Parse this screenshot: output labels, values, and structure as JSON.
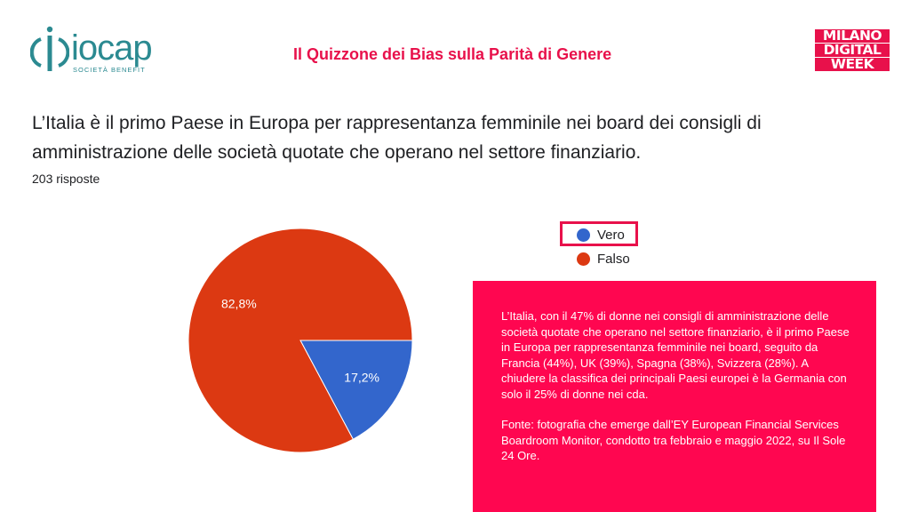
{
  "header": {
    "logo_name": "iocap",
    "logo_tagline": "SOCIETÀ BENEFIT",
    "title": "Il Quizzone dei Bias sulla Parità di Genere",
    "event_logo": [
      "MILANO",
      "DIGITAL",
      "WEEK"
    ]
  },
  "question": {
    "text": "L’Italia è il primo Paese in Europa per rappresentanza femminile nei board dei consigli di amministrazione delle società quotate che operano nel settore finanziario.",
    "responses": "203 risposte"
  },
  "chart_data": {
    "type": "pie",
    "categories": [
      "Vero",
      "Falso"
    ],
    "values": [
      17.2,
      82.8
    ],
    "labels": [
      "17,2%",
      "82,8%"
    ],
    "colors": [
      "#3366cc",
      "#dc3912"
    ],
    "legend_position": "right",
    "highlighted": "Vero"
  },
  "info": {
    "paragraph1": "L’Italia, con il 47% di donne nei consigli di amministrazione delle società quotate che operano nel settore finanziario, è il primo Paese in Europa per rappresentanza femminile nei board, seguito da Francia (44%), UK (39%), Spagna (38%), Svizzera (28%). A chiudere la classifica dei principali Paesi europei è la Germania con solo il 25% di donne nei cda.",
    "paragraph2": "Fonte: fotografia che emerge dall’EY European Financial Services Boardroom Monitor, condotto tra febbraio e maggio 2022, su Il Sole 24 Ore."
  },
  "colors": {
    "accent": "#e8114b",
    "brand": "#2b8a91",
    "info_bg": "#ff0650"
  }
}
